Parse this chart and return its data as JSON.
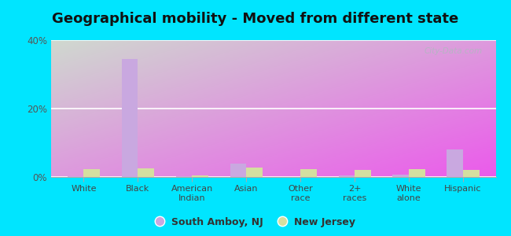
{
  "title": "Geographical mobility - Moved from different state",
  "categories": [
    "White",
    "Black",
    "American\nIndian",
    "Asian",
    "Other\nrace",
    "2+\nraces",
    "White\nalone",
    "Hispanic"
  ],
  "south_amboy": [
    0.2,
    34.5,
    0.2,
    3.8,
    0.1,
    0.5,
    0.8,
    8.0
  ],
  "new_jersey": [
    2.2,
    2.5,
    0.4,
    2.8,
    2.2,
    2.0,
    2.2,
    2.0
  ],
  "bar_color_amboy": "#c9a8e0",
  "bar_color_nj": "#d4dfa0",
  "ylim": [
    0,
    40
  ],
  "yticks": [
    0,
    20,
    40
  ],
  "ytick_labels": [
    "0%",
    "20%",
    "40%"
  ],
  "outer_bg": "#00e5ff",
  "title_fontsize": 13,
  "legend_label_amboy": "South Amboy, NJ",
  "legend_label_nj": "New Jersey",
  "watermark": "City-Data.com"
}
